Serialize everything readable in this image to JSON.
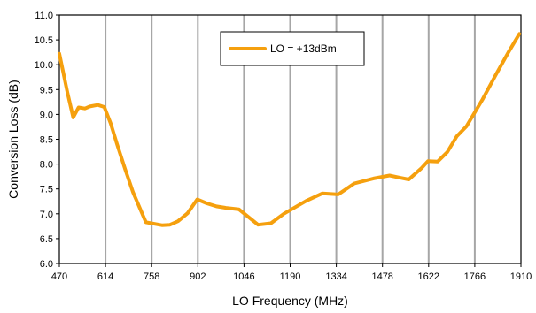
{
  "chart_data": {
    "type": "line",
    "xlabel": "LO Frequency (MHz)",
    "ylabel": "Conversion Loss (dB)",
    "xlim": [
      470,
      1910
    ],
    "ylim": [
      6.0,
      11.0
    ],
    "x_ticks": [
      "470",
      "614",
      "758",
      "902",
      "1046",
      "1190",
      "1334",
      "1478",
      "1622",
      "1766",
      "1910"
    ],
    "y_ticks": [
      "6.0",
      "6.5",
      "7.0",
      "7.5",
      "8.0",
      "8.5",
      "9.0",
      "9.5",
      "10.0",
      "10.5",
      "11.0"
    ],
    "grid": "vertical",
    "legend": "top-center",
    "colors": {
      "series": "#F5A00E",
      "grid": "#A6A6A6",
      "axis": "#000000"
    },
    "series": [
      {
        "name": "LO = +13dBm",
        "x": [
          470,
          495,
          513,
          530,
          550,
          565,
          590,
          610,
          630,
          650,
          675,
          700,
          740,
          790,
          815,
          840,
          870,
          900,
          930,
          960,
          990,
          1030,
          1090,
          1130,
          1170,
          1240,
          1290,
          1340,
          1390,
          1450,
          1500,
          1530,
          1560,
          1600,
          1620,
          1650,
          1680,
          1710,
          1740,
          1790,
          1830,
          1870,
          1905
        ],
        "y": [
          10.22,
          9.45,
          8.94,
          9.14,
          9.12,
          9.16,
          9.19,
          9.15,
          8.82,
          8.4,
          7.9,
          7.43,
          6.83,
          6.77,
          6.78,
          6.85,
          7.01,
          7.29,
          7.21,
          7.15,
          7.12,
          7.09,
          6.78,
          6.81,
          7.0,
          7.26,
          7.41,
          7.39,
          7.61,
          7.71,
          7.77,
          7.73,
          7.69,
          7.92,
          8.06,
          8.05,
          8.24,
          8.56,
          8.76,
          9.3,
          9.78,
          10.24,
          10.62
        ]
      }
    ]
  }
}
